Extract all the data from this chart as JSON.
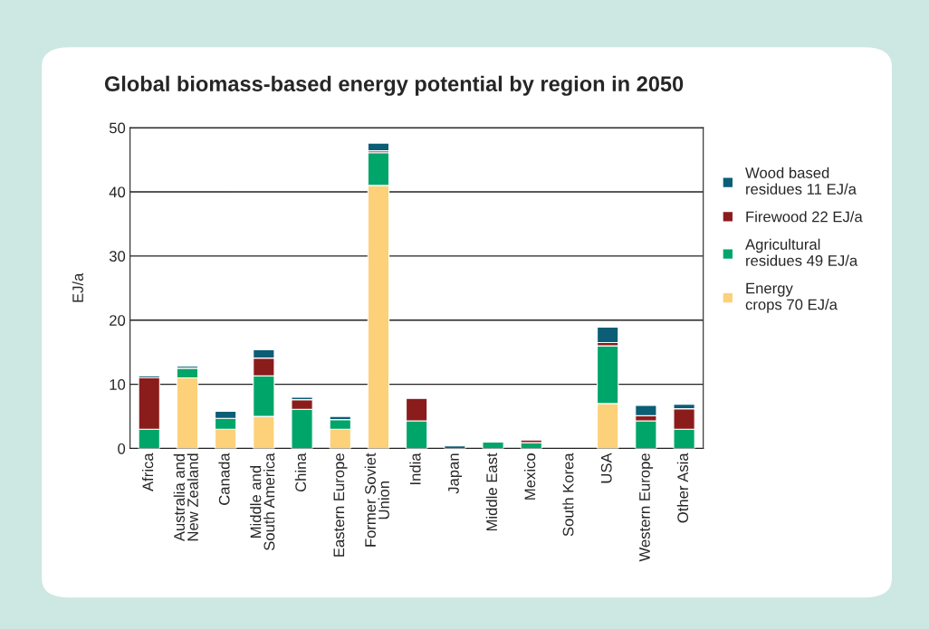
{
  "chart_data": {
    "type": "bar",
    "title": "Global biomass-based energy potential by region in 2050",
    "ylabel": "EJ/a",
    "categories": [
      "Africa",
      "Australia and\nNew Zealand",
      "Canada",
      "Middle and\nSouth America",
      "China",
      "Eastern Europe",
      "Former Soviet\nUnion",
      "India",
      "Japan",
      "Middle East",
      "Mexico",
      "South Korea",
      "USA",
      "Western Europe",
      "Other Asia"
    ],
    "stacked": true,
    "series": [
      {
        "name": "Energy\ncrops 70 EJ/a",
        "color": "#fdd17a",
        "values": [
          0,
          11,
          3,
          5,
          0,
          3,
          41,
          0,
          0,
          0,
          0,
          0,
          7,
          0,
          0
        ]
      },
      {
        "name": "Agricultural\nresidues 49 EJ/a",
        "color": "#00a56a",
        "values": [
          3,
          1.5,
          1.7,
          6.3,
          6.1,
          1.5,
          5.1,
          4.3,
          null,
          1,
          0.9,
          null,
          9,
          4.3,
          3
        ]
      },
      {
        "name": "Firewood 22 EJ/a",
        "color": "#8b1c1c",
        "values": [
          8,
          null,
          0,
          2.8,
          1.5,
          0,
          0.3,
          3.5,
          0,
          0,
          0.4,
          0,
          0.5,
          0.8,
          3.2
        ]
      },
      {
        "name": "Wood based\nresidues 11 EJ/a",
        "color": "#0b5e75",
        "values": [
          0.3,
          0.3,
          1.1,
          1.3,
          0.4,
          0.5,
          1.2,
          0,
          0.4,
          0,
          0,
          0,
          2.4,
          1.6,
          0.7
        ]
      }
    ],
    "ylim": [
      0,
      50
    ],
    "yticks": [
      0,
      10,
      20,
      30,
      40,
      50
    ],
    "grid": "y",
    "legend": "right"
  }
}
